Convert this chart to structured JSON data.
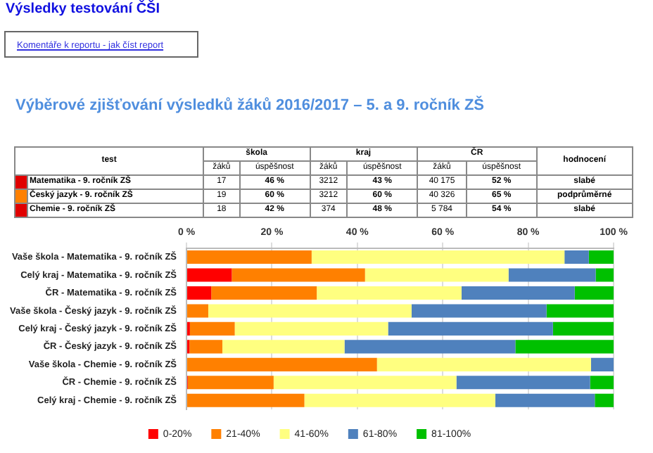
{
  "chart_data": [
    {
      "type": "other",
      "title": "Výsledky testování ČŠI",
      "subtitle": "Výběrové zjišťování výsledků žáků 2016/2017 – 5. a 9. ročník ZŠ",
      "annotations": [
        "Komentáře k reportu - jak číst report",
        "test",
        "škola",
        "kraj",
        "ČR",
        "hodnocení",
        "žáků",
        "úspěšnost",
        "žáků",
        "úspěšnost",
        "žáků",
        "úspěšnost",
        "Matematika - 9. ročník ZŠ",
        "17",
        "46 %",
        "3212",
        "43 %",
        "40 175",
        "52 %",
        "slabé",
        "Český jazyk - 9. ročník ZŠ",
        "19",
        "60 %",
        "3212",
        "60 %",
        "40 326",
        "65 %",
        "podprůměrné",
        "Chemie - 9. ročník ZŠ",
        "18",
        "42 %",
        "374",
        "48 %",
        "5 784",
        "54 %",
        "slabé"
      ],
      "colors": [
        "#e00000",
        "#ff8000",
        "#e00000"
      ]
    },
    {
      "type": "bar",
      "orientation": "horizontal",
      "stacked": true,
      "categories": [
        "Vaše škola - Matematika - 9. ročník ZŠ",
        "Celý kraj - Matematika - 9. ročník ZŠ",
        "ČR - Matematika - 9. ročník ZŠ",
        "Vaše škola - Český jazyk - 9. ročník ZŠ",
        "Celý kraj - Český jazyk - 9. ročník ZŠ",
        "ČR - Český jazyk - 9. ročník ZŠ",
        "Vaše škola - Chemie - 9. ročník ZŠ",
        "ČR - Chemie - 9. ročník ZŠ",
        "Celý kraj - Chemie - 9. ročník ZŠ"
      ],
      "series": [
        {
          "name": "0-20%",
          "color": "#ff0000",
          "values": [
            0,
            10.6,
            5.8,
            0,
            0.8,
            0.7,
            0,
            0.3,
            0
          ]
        },
        {
          "name": "21-40%",
          "color": "#ff8000",
          "values": [
            29.3,
            31.2,
            24.7,
            5.1,
            10.5,
            7.7,
            44.6,
            20.1,
            27.6
          ]
        },
        {
          "name": "41-60%",
          "color": "#ffff80",
          "values": [
            59.2,
            33.6,
            33.9,
            47.6,
            35.9,
            28.6,
            50.1,
            42.8,
            44.7
          ]
        },
        {
          "name": "61-80%",
          "color": "#4f81bd",
          "values": [
            5.7,
            20.4,
            26.5,
            31.6,
            38.6,
            40.0,
            5.3,
            31.3,
            23.3
          ]
        },
        {
          "name": "81-100%",
          "color": "#00c000",
          "values": [
            5.8,
            4.2,
            9.1,
            15.7,
            14.2,
            23.0,
            0,
            5.5,
            4.4
          ]
        }
      ],
      "xlim": [
        0,
        100
      ],
      "xticks": [
        {
          "value": 0,
          "label": "0 %"
        },
        {
          "value": 20,
          "label": "20 %"
        },
        {
          "value": 40,
          "label": "40 %"
        },
        {
          "value": 60,
          "label": "60 %"
        },
        {
          "value": 80,
          "label": "80 %"
        },
        {
          "value": 100,
          "label": "100 %"
        }
      ],
      "grid": "x",
      "legend": "bottom"
    }
  ]
}
